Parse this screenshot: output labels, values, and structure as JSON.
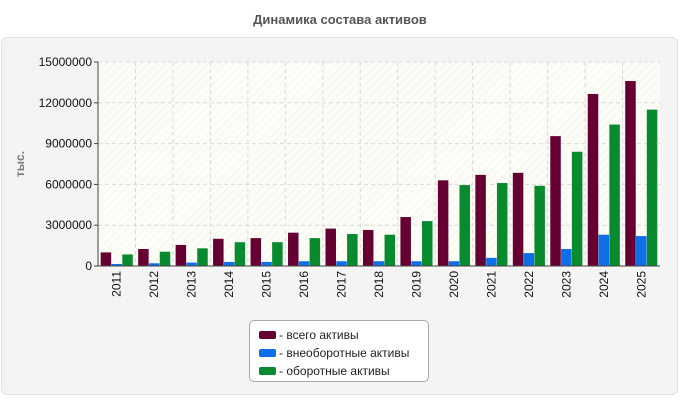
{
  "chart_data": {
    "type": "bar",
    "title": "Динамика состава активов",
    "ylabel": "тыс.",
    "xlabel": "",
    "ylim": [
      0,
      15000000
    ],
    "yticks": [
      0,
      3000000,
      6000000,
      9000000,
      12000000,
      15000000
    ],
    "grid": true,
    "legend_position": "bottom",
    "categories": [
      "2011",
      "2012",
      "2013",
      "2014",
      "2015",
      "2016",
      "2017",
      "2018",
      "2019",
      "2020",
      "2021",
      "2022",
      "2023",
      "2024",
      "2025"
    ],
    "series": [
      {
        "name": "всего активы",
        "color": "#660033",
        "values": [
          1000000,
          1250000,
          1550000,
          2000000,
          2050000,
          2450000,
          2750000,
          2650000,
          3600000,
          6300000,
          6700000,
          6850000,
          9550000,
          12650000,
          13600000
        ]
      },
      {
        "name": "внеоборотные активы",
        "color": "#0f6fe8",
        "values": [
          150000,
          200000,
          250000,
          300000,
          300000,
          350000,
          350000,
          350000,
          350000,
          350000,
          600000,
          950000,
          1250000,
          2300000,
          2200000
        ]
      },
      {
        "name": "оборотные активы",
        "color": "#088a2e",
        "values": [
          850000,
          1050000,
          1300000,
          1750000,
          1750000,
          2050000,
          2350000,
          2300000,
          3300000,
          5950000,
          6100000,
          5900000,
          8400000,
          10400000,
          11500000
        ]
      }
    ]
  }
}
